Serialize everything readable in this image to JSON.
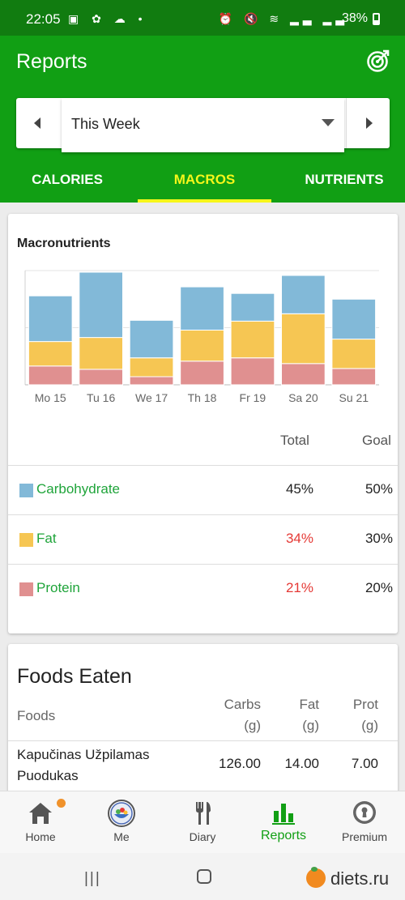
{
  "status_bar": {
    "time": "22:05",
    "left_icons": "▣ ✿ ☁ •",
    "right_icons": "⏰ 🔇 ≋ ▂▃ ▂▃",
    "battery": "38%"
  },
  "app_bar": {
    "title": "Reports",
    "goal_icon": "target-icon"
  },
  "period": {
    "value": "This Week",
    "prev_icon": "arrow-left-icon",
    "next_icon": "arrow-right-icon"
  },
  "tabs": [
    {
      "label": "CALORIES",
      "active": false
    },
    {
      "label": "MACROS",
      "active": true
    },
    {
      "label": "NUTRIENTS",
      "active": false
    }
  ],
  "macros_card": {
    "title": "Macronutrients",
    "total_header": "Total",
    "goal_header": "Goal",
    "rows": [
      {
        "name": "Carbohydrate",
        "color": "#82b9d8",
        "total": "45%",
        "goal": "50%",
        "over": false
      },
      {
        "name": "Fat",
        "color": "#f6c653",
        "total": "34%",
        "goal": "30%",
        "over": true
      },
      {
        "name": "Protein",
        "color": "#e09090",
        "total": "21%",
        "goal": "20%",
        "over": true
      }
    ]
  },
  "chart_data": {
    "type": "bar",
    "stacked": true,
    "title": "Macronutrients",
    "categories": [
      "Mo 15",
      "Tu 16",
      "We 17",
      "Th 18",
      "Fr 19",
      "Sa 20",
      "Su 21"
    ],
    "series": [
      {
        "name": "Protein",
        "color": "#e09090",
        "values": [
          23,
          19,
          10,
          29,
          33,
          26,
          20
        ]
      },
      {
        "name": "Fat",
        "color": "#f6c653",
        "values": [
          30,
          39,
          23,
          38,
          45,
          61,
          36
        ]
      },
      {
        "name": "Carbohydrate",
        "color": "#82b9d8",
        "values": [
          56,
          80,
          46,
          53,
          34,
          47,
          49
        ]
      }
    ],
    "ylim": [
      0,
      140
    ],
    "grid": true
  },
  "foods_card": {
    "title": "Foods Eaten",
    "headers": {
      "foods": "Foods",
      "carbs": "Carbs",
      "carbs_unit": "(g)",
      "fat": "Fat",
      "fat_unit": "(g)",
      "prot": "Prot",
      "prot_unit": "(g)"
    },
    "rows": [
      {
        "name": "Kapučinas Užpilamas Puodukas",
        "carbs": "126.00",
        "fat": "14.00",
        "prot": "7.00"
      }
    ]
  },
  "bottom_nav": [
    {
      "label": "Home",
      "icon": "home-icon",
      "active": false,
      "badge": true
    },
    {
      "label": "Me",
      "icon": "avatar-icon",
      "active": false
    },
    {
      "label": "Diary",
      "icon": "cutlery-icon",
      "active": false
    },
    {
      "label": "Reports",
      "icon": "bar-chart-icon",
      "active": true
    },
    {
      "label": "Premium",
      "icon": "keyhole-icon",
      "active": false
    }
  ],
  "watermark": "diets.ru",
  "colors": {
    "header_dark": "#117c10",
    "header": "#119f14",
    "tab_active": "#f6f61a",
    "link_green": "#1fa43a",
    "over_red": "#e53935"
  }
}
